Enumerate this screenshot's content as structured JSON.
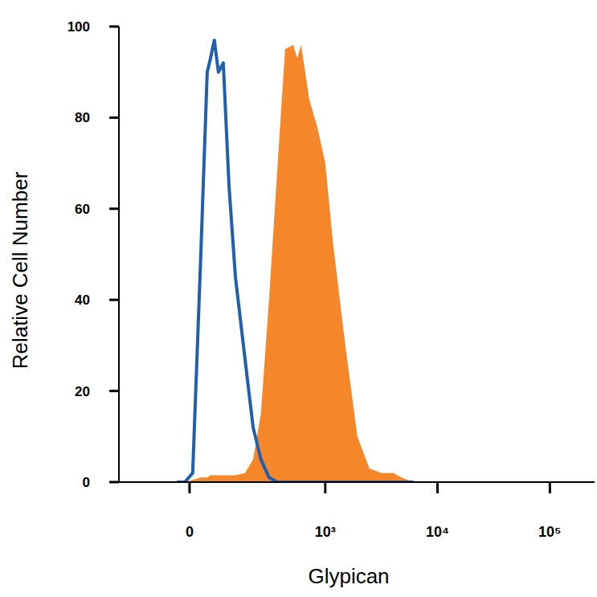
{
  "chart_data": {
    "type": "area",
    "x_label": "Glypican",
    "y_label": "Relative Cell Number",
    "log": "x",
    "xlim": [
      -250,
      250000
    ],
    "ylim": [
      0,
      100
    ],
    "xticks": [
      0,
      {
        "value": 1000,
        "label": "10³"
      },
      {
        "value": 10000,
        "label": "10⁴"
      },
      {
        "value": 100000,
        "label": "10⁵"
      }
    ],
    "yticks": [
      0,
      20,
      40,
      60,
      80,
      100
    ],
    "x": [
      -33,
      -12,
      8,
      29,
      46,
      55,
      66,
      78,
      93,
      112,
      135,
      174,
      212,
      254,
      305,
      364,
      432,
      513,
      558,
      606,
      717,
      847,
      1000,
      1179,
      1512,
      1935,
      2476,
      3173,
      4060,
      4781,
      6125
    ],
    "series": [
      {
        "color": "#f5862a",
        "type": "area",
        "values": [
          0,
          0,
          0.5,
          1,
          1,
          1.5,
          1.5,
          1.5,
          1.5,
          1.5,
          1.5,
          2,
          5,
          15,
          40,
          68,
          95,
          96,
          93,
          96,
          84,
          78,
          70,
          52,
          30,
          10,
          3,
          2,
          2,
          1,
          0
        ]
      },
      {
        "color": "#1f5fad",
        "type": "line",
        "values": [
          0,
          0,
          2,
          50,
          90,
          93,
          97,
          90,
          92,
          65,
          45,
          27,
          12,
          5,
          1,
          0,
          0,
          0,
          0,
          0,
          0,
          0,
          0,
          0,
          0,
          0,
          0,
          0,
          0,
          0,
          0
        ]
      }
    ]
  }
}
